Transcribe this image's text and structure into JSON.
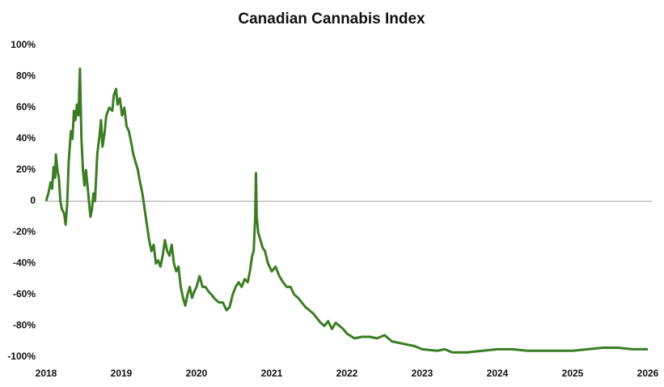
{
  "chart_data": {
    "type": "line",
    "title": "Canadian Cannabis Index",
    "x": [
      2018.0,
      2018.03,
      2018.06,
      2018.08,
      2018.1,
      2018.12,
      2018.13,
      2018.15,
      2018.17,
      2018.19,
      2018.21,
      2018.24,
      2018.26,
      2018.28,
      2018.3,
      2018.33,
      2018.35,
      2018.37,
      2018.39,
      2018.41,
      2018.43,
      2018.45,
      2018.47,
      2018.49,
      2018.51,
      2018.53,
      2018.56,
      2018.59,
      2018.61,
      2018.63,
      2018.65,
      2018.68,
      2018.71,
      2018.73,
      2018.75,
      2018.78,
      2018.8,
      2018.84,
      2018.88,
      2018.9,
      2018.93,
      2018.95,
      2018.98,
      2019.01,
      2019.04,
      2019.07,
      2019.1,
      2019.13,
      2019.16,
      2019.19,
      2019.22,
      2019.25,
      2019.28,
      2019.31,
      2019.34,
      2019.37,
      2019.4,
      2019.43,
      2019.46,
      2019.49,
      2019.52,
      2019.55,
      2019.58,
      2019.61,
      2019.64,
      2019.67,
      2019.7,
      2019.73,
      2019.76,
      2019.79,
      2019.82,
      2019.85,
      2019.88,
      2019.91,
      2019.94,
      2019.97,
      2020.0,
      2020.04,
      2020.08,
      2020.12,
      2020.16,
      2020.2,
      2020.25,
      2020.3,
      2020.35,
      2020.4,
      2020.44,
      2020.48,
      2020.52,
      2020.56,
      2020.6,
      2020.64,
      2020.68,
      2020.71,
      2020.74,
      2020.76,
      2020.78,
      2020.79,
      2020.8,
      2020.82,
      2020.85,
      2020.88,
      2020.91,
      2020.95,
      2021.0,
      2021.05,
      2021.1,
      2021.15,
      2021.2,
      2021.25,
      2021.3,
      2021.35,
      2021.4,
      2021.45,
      2021.5,
      2021.55,
      2021.6,
      2021.65,
      2021.7,
      2021.75,
      2021.8,
      2021.85,
      2021.9,
      2021.95,
      2022.0,
      2022.1,
      2022.2,
      2022.3,
      2022.4,
      2022.5,
      2022.6,
      2022.7,
      2022.8,
      2022.9,
      2023.0,
      2023.2,
      2023.3,
      2023.4,
      2023.6,
      2023.8,
      2024.0,
      2024.2,
      2024.4,
      2024.6,
      2024.8,
      2025.0,
      2025.2,
      2025.4,
      2025.6,
      2025.8,
      2026.0
    ],
    "series": [
      {
        "name": "Canadian Cannabis Index",
        "color": "#3b7d23",
        "values": [
          0,
          5,
          12,
          8,
          22,
          15,
          30,
          20,
          15,
          0,
          -5,
          -8,
          -15,
          -2,
          25,
          45,
          40,
          58,
          52,
          62,
          55,
          85,
          40,
          20,
          10,
          20,
          5,
          -10,
          -5,
          5,
          0,
          30,
          42,
          52,
          35,
          45,
          55,
          60,
          58,
          68,
          72,
          62,
          66,
          55,
          60,
          48,
          45,
          38,
          30,
          25,
          20,
          12,
          5,
          -5,
          -15,
          -25,
          -32,
          -28,
          -40,
          -38,
          -42,
          -35,
          -25,
          -32,
          -35,
          -28,
          -40,
          -45,
          -42,
          -55,
          -62,
          -67,
          -60,
          -55,
          -62,
          -58,
          -55,
          -48,
          -55,
          -55,
          -58,
          -60,
          -63,
          -65,
          -65,
          -70,
          -68,
          -60,
          -55,
          -52,
          -55,
          -50,
          -52,
          -45,
          -35,
          -32,
          -10,
          18,
          -10,
          -20,
          -25,
          -30,
          -32,
          -40,
          -45,
          -42,
          -48,
          -52,
          -55,
          -55,
          -60,
          -62,
          -65,
          -68,
          -70,
          -72,
          -75,
          -78,
          -80,
          -77,
          -82,
          -78,
          -80,
          -82,
          -85,
          -88,
          -87,
          -87,
          -88,
          -86,
          -90,
          -91,
          -92,
          -93,
          -95,
          -96,
          -95,
          -97,
          -97,
          -96,
          -95,
          -95,
          -96,
          -96,
          -96,
          -96,
          -95,
          -94,
          -94,
          -95,
          -95
        ]
      }
    ],
    "xlim": [
      2018,
      2026
    ],
    "xticks": [
      2018,
      2019,
      2020,
      2021,
      2022,
      2023,
      2024,
      2025,
      2026
    ],
    "ylim": [
      -100,
      100
    ],
    "yticks": [
      {
        "value": 100,
        "label": "100%"
      },
      {
        "value": 80,
        "label": "80%"
      },
      {
        "value": 60,
        "label": "60%"
      },
      {
        "value": 40,
        "label": "40%"
      },
      {
        "value": 20,
        "label": "20%"
      },
      {
        "value": 0,
        "label": "0"
      },
      {
        "value": -20,
        "label": "-20%"
      },
      {
        "value": -40,
        "label": "-40%"
      },
      {
        "value": -60,
        "label": "-60%"
      },
      {
        "value": -80,
        "label": "-80%"
      },
      {
        "value": -100,
        "label": "-100%"
      }
    ],
    "zero_line": true,
    "zero_line_color": "#a6a6a6"
  }
}
